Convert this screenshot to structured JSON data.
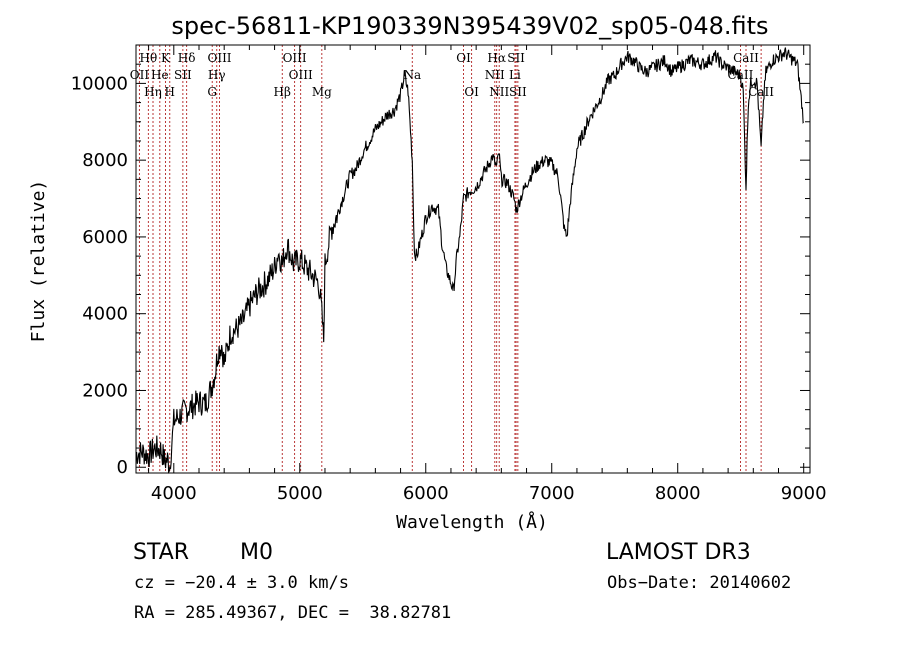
{
  "chart_data": {
    "type": "line",
    "title": "spec-56811-KP190339N395439V02_sp05-048.fits",
    "xlabel": "Wavelength (Å)",
    "ylabel": "Flux (relative)",
    "xlim": [
      3700,
      9050
    ],
    "ylim": [
      -150,
      11000
    ],
    "x_ticks": [
      "4000",
      "5000",
      "6000",
      "7000",
      "8000",
      "9000"
    ],
    "y_ticks": [
      "0",
      "2000",
      "4000",
      "6000",
      "8000",
      "10000"
    ],
    "grid": false,
    "series": [
      {
        "x": [
          3700,
          3750,
          3800,
          3850,
          3900,
          3930,
          3950,
          3968,
          3990,
          4000,
          4050,
          4100,
          4150,
          4200,
          4250,
          4300,
          4330,
          4350,
          4380,
          4400,
          4450,
          4500,
          4550,
          4600,
          4650,
          4700,
          4750,
          4800,
          4830,
          4861,
          4900,
          4950,
          5000,
          5050,
          5100,
          5150,
          5170,
          5190,
          5200,
          5250,
          5300,
          5350,
          5400,
          5450,
          5500,
          5550,
          5600,
          5650,
          5700,
          5750,
          5800,
          5830,
          5860,
          5893,
          5910,
          5930,
          5950,
          5980,
          6000,
          6050,
          6100,
          6130,
          6160,
          6200,
          6220,
          6250,
          6270,
          6300,
          6350,
          6400,
          6450,
          6500,
          6530,
          6563,
          6580,
          6600,
          6650,
          6700,
          6720,
          6750,
          6800,
          6850,
          6900,
          6950,
          7000,
          7050,
          7100,
          7120,
          7150,
          7200,
          7250,
          7300,
          7350,
          7400,
          7450,
          7500,
          7550,
          7600,
          7650,
          7700,
          7750,
          7800,
          7850,
          7900,
          7950,
          8000,
          8050,
          8100,
          8150,
          8200,
          8250,
          8300,
          8350,
          8400,
          8450,
          8498,
          8520,
          8542,
          8560,
          8580,
          8600,
          8630,
          8662,
          8680,
          8700,
          8750,
          8800,
          8850,
          8900,
          8950,
          9000
        ],
        "values": [
          350,
          400,
          300,
          500,
          450,
          150,
          200,
          50,
          800,
          1200,
          1350,
          1500,
          1600,
          1700,
          1650,
          2100,
          2500,
          3000,
          3200,
          2700,
          3500,
          3600,
          3800,
          4200,
          4500,
          4700,
          4900,
          5200,
          5600,
          5300,
          5800,
          5300,
          5400,
          5200,
          5000,
          4800,
          4200,
          3300,
          5300,
          6200,
          6600,
          7100,
          7600,
          7800,
          8200,
          8500,
          8800,
          9000,
          9200,
          9300,
          9700,
          10200,
          9800,
          8000,
          5600,
          5500,
          5800,
          6200,
          6500,
          6800,
          6700,
          5800,
          5200,
          4800,
          4600,
          5600,
          6000,
          7000,
          7200,
          7300,
          7600,
          7900,
          8100,
          7800,
          8200,
          7500,
          7400,
          7000,
          6700,
          7000,
          7400,
          7700,
          7900,
          8000,
          7900,
          7600,
          6200,
          6000,
          7000,
          8300,
          8700,
          9100,
          9400,
          9700,
          10100,
          10200,
          10500,
          10700,
          10600,
          10400,
          10300,
          10400,
          10500,
          10600,
          10300,
          10400,
          10500,
          10600,
          10550,
          10500,
          10600,
          10700,
          10500,
          10400,
          10300,
          10200,
          9800,
          7300,
          9500,
          10000,
          10100,
          10000,
          8300,
          9500,
          10300,
          10600,
          10700,
          10800,
          10650,
          10500,
          9000
        ]
      }
    ],
    "spectral_lines": [
      {
        "label": "Hθ",
        "wavelength": 3798,
        "row": 1
      },
      {
        "label": "K",
        "wavelength": 3934,
        "row": 1
      },
      {
        "label": "Hδ",
        "wavelength": 4102,
        "row": 1
      },
      {
        "label": "OIII",
        "wavelength": 4363,
        "row": 1
      },
      {
        "label": "OIII",
        "wavelength": 4959,
        "row": 1
      },
      {
        "label": "OI",
        "wavelength": 6300,
        "row": 1
      },
      {
        "label": "Hα",
        "wavelength": 6563,
        "row": 1
      },
      {
        "label": "SII",
        "wavelength": 6717,
        "row": 1
      },
      {
        "label": "CaII",
        "wavelength": 8542,
        "row": 1
      },
      {
        "label": "OII",
        "wavelength": 3727,
        "row": 2
      },
      {
        "label": "He",
        "wavelength": 3889,
        "row": 2
      },
      {
        "label": "SII",
        "wavelength": 4072,
        "row": 2
      },
      {
        "label": "Hγ",
        "wavelength": 4341,
        "row": 2
      },
      {
        "label": "OIII",
        "wavelength": 5007,
        "row": 2
      },
      {
        "label": "Na",
        "wavelength": 5893,
        "row": 2
      },
      {
        "label": "NII",
        "wavelength": 6548,
        "row": 2
      },
      {
        "label": "Li",
        "wavelength": 6708,
        "row": 2
      },
      {
        "label": "CaII",
        "wavelength": 8498,
        "row": 2
      },
      {
        "label": "Hη",
        "wavelength": 3835,
        "row": 3
      },
      {
        "label": "H",
        "wavelength": 3968,
        "row": 3
      },
      {
        "label": "G",
        "wavelength": 4305,
        "row": 3
      },
      {
        "label": "Hβ",
        "wavelength": 4861,
        "row": 3
      },
      {
        "label": "Mg",
        "wavelength": 5175,
        "row": 3
      },
      {
        "label": "OI",
        "wavelength": 6364,
        "row": 3
      },
      {
        "label": "NII",
        "wavelength": 6583,
        "row": 3
      },
      {
        "label": "SII",
        "wavelength": 6731,
        "row": 3
      },
      {
        "label": "CaII",
        "wavelength": 8662,
        "row": 3
      }
    ],
    "colors": {
      "spectrum": "#000000",
      "line_marker": "#b22222"
    }
  },
  "info": {
    "class": "STAR",
    "subclass": "M0",
    "survey": "LAMOST DR3",
    "cz": "cz = −20.4 ± 3.0 km/s",
    "obs_date": "Obs−Date: 20140602",
    "coords": "RA = 285.49367, DEC =  38.82781"
  }
}
